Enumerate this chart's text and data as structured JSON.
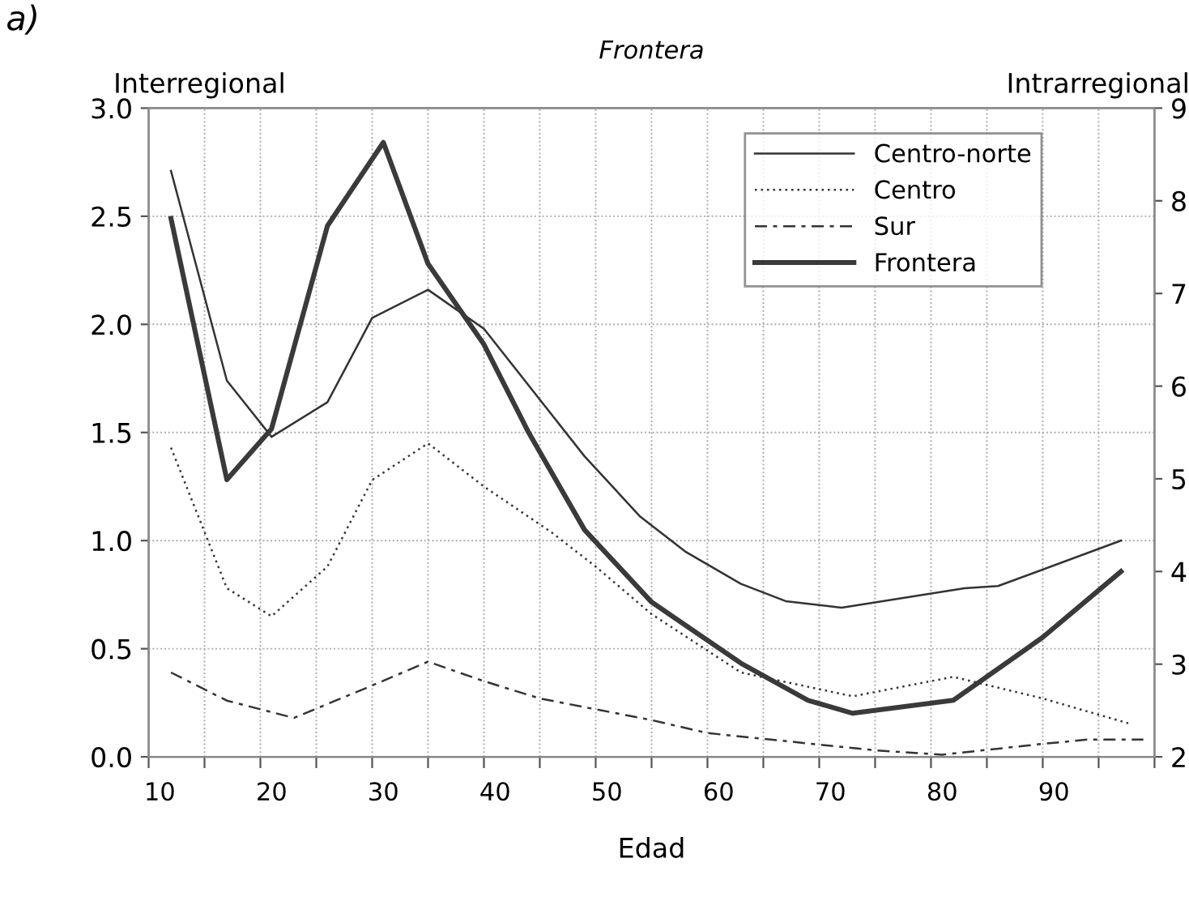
{
  "chart_data": {
    "type": "line",
    "title": "Frontera",
    "xlabel": "Edad",
    "ylabel": "Interregional",
    "y2label": "Intrarregional",
    "annotations": [
      "a)"
    ],
    "xlim": [
      9,
      99
    ],
    "xticks": [
      {
        "value": 9,
        "label": null
      },
      {
        "value": 14,
        "label": null
      },
      {
        "value": 19,
        "label": null
      },
      {
        "value": 24,
        "label": null
      },
      {
        "value": 29,
        "label": null
      },
      {
        "value": 34,
        "label": null
      },
      {
        "value": 39,
        "label": null
      },
      {
        "value": 44,
        "label": null
      },
      {
        "value": 49,
        "label": null
      },
      {
        "value": 54,
        "label": null
      },
      {
        "value": 59,
        "label": null
      },
      {
        "value": 64,
        "label": null
      },
      {
        "value": 69,
        "label": null
      },
      {
        "value": 74,
        "label": null
      },
      {
        "value": 79,
        "label": null
      },
      {
        "value": 84,
        "label": null
      },
      {
        "value": 89,
        "label": null
      },
      {
        "value": 94,
        "label": null
      },
      {
        "value": 99,
        "label": null
      },
      10,
      20,
      30,
      40,
      50,
      60,
      70,
      80,
      90
    ],
    "ylim": [
      0,
      3
    ],
    "yticks": [
      {
        "value": 0,
        "label": "0.0"
      },
      {
        "value": 0.5,
        "label": "0.5"
      },
      {
        "value": 1,
        "label": "1.0"
      },
      {
        "value": 1.5,
        "label": "1.5"
      },
      {
        "value": 2,
        "label": "2.0"
      },
      {
        "value": 2.5,
        "label": "2.5"
      },
      {
        "value": 3,
        "label": "3.0"
      }
    ],
    "y2lim": [
      2,
      9
    ],
    "y2ticks": [
      2,
      3,
      4,
      5,
      6,
      7,
      8,
      9
    ],
    "grid": true,
    "legend": "top right",
    "marker": "none",
    "series": [
      {
        "name": "Centro-norte",
        "color": "#333333",
        "line_style": "solid",
        "x": [
          11,
          16,
          20,
          25,
          29,
          34,
          39,
          48,
          53,
          57,
          62,
          66,
          71,
          82,
          85,
          96
        ],
        "values": [
          2.71,
          1.74,
          1.48,
          1.64,
          2.03,
          2.16,
          1.98,
          1.39,
          1.11,
          0.95,
          0.8,
          0.72,
          0.69,
          0.78,
          0.79,
          1.0
        ]
      },
      {
        "name": "Centro",
        "color": "#333333",
        "line_style": "dotted",
        "x": [
          11,
          16,
          20,
          25,
          29,
          34,
          39,
          45,
          49,
          54,
          62,
          72,
          81,
          89,
          97
        ],
        "values": [
          1.43,
          0.78,
          0.65,
          0.88,
          1.28,
          1.45,
          1.25,
          1.04,
          0.88,
          0.66,
          0.39,
          0.28,
          0.37,
          0.27,
          0.15
        ]
      },
      {
        "name": "Sur",
        "color": "#333333",
        "line_style": "dashed",
        "x": [
          11,
          16,
          22,
          29,
          34,
          39,
          44,
          54,
          59,
          74,
          80,
          89,
          93,
          98
        ],
        "values": [
          0.39,
          0.26,
          0.18,
          0.33,
          0.44,
          0.35,
          0.27,
          0.17,
          0.11,
          0.03,
          0.01,
          0.06,
          0.08,
          0.08
        ]
      },
      {
        "name": "Frontera",
        "color": "#3a3a3a",
        "line_style": "solid",
        "axis": "y2",
        "x": [
          11,
          16,
          20,
          25,
          30,
          34,
          39,
          43,
          48,
          54,
          62,
          68,
          72,
          81,
          89,
          96
        ],
        "values": [
          7.81,
          4.99,
          5.54,
          7.73,
          8.63,
          7.32,
          6.45,
          5.5,
          4.45,
          3.67,
          3.01,
          2.61,
          2.47,
          2.61,
          3.29,
          4.0
        ]
      }
    ]
  }
}
